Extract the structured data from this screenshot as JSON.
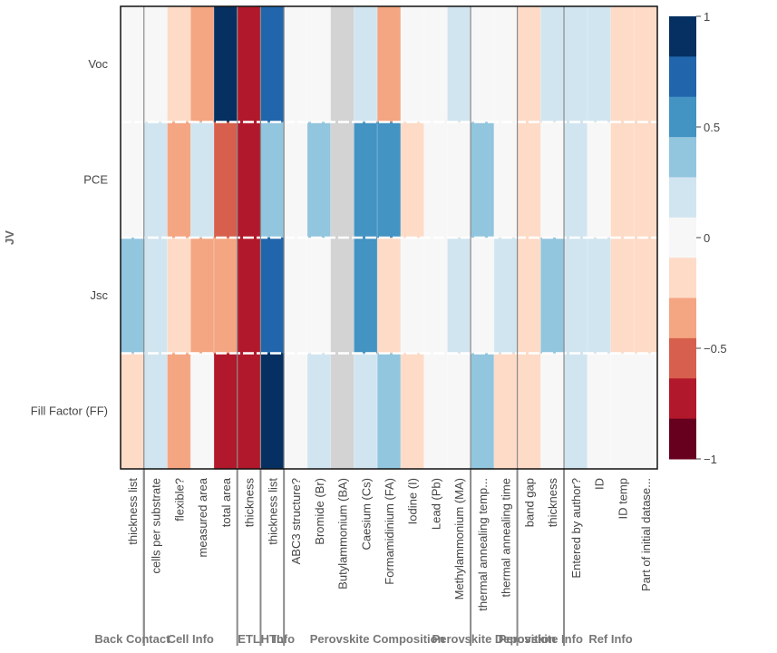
{
  "chart_data": {
    "type": "heatmap",
    "title": "",
    "ylabel": "JV",
    "rows": [
      "Voc",
      "PCE",
      "Jsc",
      "Fill Factor (FF)"
    ],
    "columns": [
      "thickness list",
      "cells per substrate",
      "flexible?",
      "measured area",
      "total area",
      "thickness",
      "thickness list",
      "ABC3 structure?",
      "Bromide (Br)",
      "Butylammonium (BA)",
      "Caesium (Cs)",
      "Formamidinium (FA)",
      "Iodine (I)",
      "Lead (Pb)",
      "Methylammonium (MA)",
      "thermal annealing temp...",
      "thermal annealing time",
      "band gap",
      "thickness",
      "Entered by author?",
      "ID",
      "ID temp",
      "Part of initial datase..."
    ],
    "groups": [
      {
        "label": "Back Contact",
        "start": 0,
        "end": 1
      },
      {
        "label": "Cell Info",
        "start": 1,
        "end": 5
      },
      {
        "label": "ETL",
        "start": 5,
        "end": 6
      },
      {
        "label": "HTL",
        "start": 6,
        "end": 7
      },
      {
        "label": "Info",
        "start": 7,
        "end": 7
      },
      {
        "label": "Perovskite Composition",
        "start": 7,
        "end": 15
      },
      {
        "label": "Perovskite Deposition",
        "start": 15,
        "end": 17
      },
      {
        "label": "Perovskite Info",
        "start": 17,
        "end": 19
      },
      {
        "label": "Ref Info",
        "start": 19,
        "end": 23
      }
    ],
    "values": [
      [
        0,
        0,
        -0.15,
        -0.35,
        1.0,
        -0.8,
        0.8,
        0,
        0,
        null,
        0.1,
        -0.35,
        0,
        0,
        0.1,
        0,
        0,
        -0.15,
        0.1,
        0.1,
        0.1,
        -0.15,
        -0.15
      ],
      [
        0,
        0.1,
        -0.35,
        0.1,
        -0.55,
        -0.8,
        0.3,
        0,
        0.3,
        null,
        0.5,
        0.5,
        -0.15,
        0,
        0,
        0.3,
        0,
        -0.15,
        0,
        0.1,
        0,
        -0.15,
        -0.15
      ],
      [
        0.3,
        0.1,
        -0.15,
        -0.35,
        -0.35,
        -0.8,
        0.8,
        0,
        0,
        null,
        0.5,
        -0.15,
        0,
        0,
        0.1,
        0,
        0.1,
        -0.15,
        0.3,
        0.1,
        0.1,
        -0.15,
        -0.15
      ],
      [
        -0.15,
        0.1,
        -0.35,
        0,
        -0.8,
        -0.8,
        1.0,
        0,
        0.1,
        null,
        0.1,
        0.3,
        -0.15,
        0,
        0,
        0.3,
        -0.15,
        -0.15,
        0,
        0.1,
        0,
        0,
        0
      ]
    ],
    "nan_color": "#d3d3d3",
    "colorscale": [
      "#67001f",
      "#b2182b",
      "#d6604d",
      "#f4a582",
      "#fddbc7",
      "#f7f7f7",
      "#d1e5f0",
      "#92c5de",
      "#4393c3",
      "#2166ac",
      "#053061"
    ],
    "colorbar": {
      "min": -1,
      "max": 1,
      "ticks": [
        1,
        0.5,
        0,
        -0.5,
        -1
      ],
      "tick_labels": [
        "1",
        "0.5",
        "0",
        "−0.5",
        "−1"
      ]
    }
  }
}
